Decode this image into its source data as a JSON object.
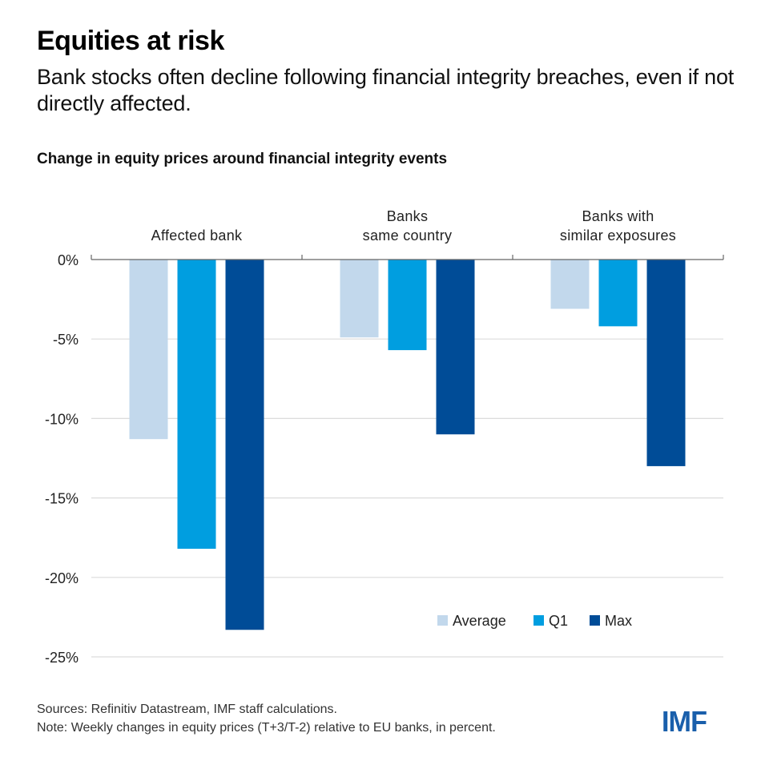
{
  "header": {
    "title": "Equities at risk",
    "subtitle": "Bank stocks often decline following financial integrity breaches, even if not directly affected."
  },
  "chart_data": {
    "type": "bar",
    "title": "Change in equity prices around financial integrity events",
    "xlabel": "",
    "ylabel": "",
    "categories": [
      [
        "Affected bank"
      ],
      [
        "Banks",
        "same country"
      ],
      [
        "Banks with",
        "similar exposures"
      ]
    ],
    "series": [
      {
        "name": "Average",
        "color": "#c2d8ec",
        "values": [
          -11.3,
          -4.9,
          -3.1
        ]
      },
      {
        "name": "Q1",
        "color": "#009ee0",
        "values": [
          -18.2,
          -5.7,
          -4.2
        ]
      },
      {
        "name": "Max",
        "color": "#004c97",
        "values": [
          -23.3,
          -11.0,
          -13.0
        ]
      }
    ],
    "ylim": [
      -25,
      0
    ],
    "yticks": [
      0,
      -5,
      -10,
      -15,
      -20,
      -25
    ],
    "ytick_labels": [
      "0%",
      "-5%",
      "-10%",
      "-15%",
      "-20%",
      "-25%"
    ],
    "grid": true,
    "legend_position": "bottom-right"
  },
  "footer": {
    "sources": "Sources: Refinitiv Datastream, IMF staff calculations.",
    "note": "Note: Weekly changes in equity prices (T+3/T-2) relative to EU banks, in percent.",
    "logo": "IMF"
  }
}
